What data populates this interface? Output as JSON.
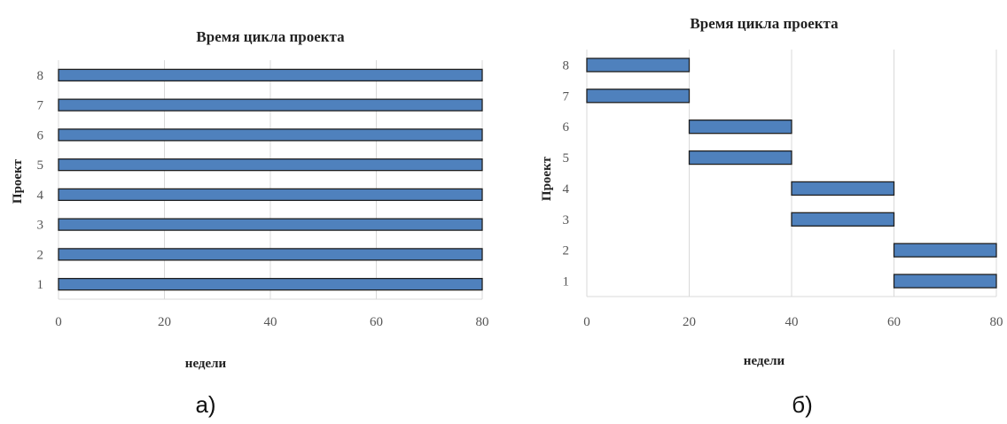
{
  "chart_data": [
    {
      "type": "bar",
      "orientation": "horizontal-range",
      "title": "Время цикла проекта",
      "xlabel": "недели",
      "ylabel": "Проект",
      "caption": "а)",
      "xlim": [
        0,
        80
      ],
      "xticks": [
        0,
        20,
        40,
        60,
        80
      ],
      "categories": [
        "1",
        "2",
        "3",
        "4",
        "5",
        "6",
        "7",
        "8"
      ],
      "starts": [
        0,
        0,
        0,
        0,
        0,
        0,
        0,
        0
      ],
      "ends": [
        80,
        80,
        80,
        80,
        80,
        80,
        80,
        80
      ],
      "grid": true,
      "bar_color": "#4f81bd"
    },
    {
      "type": "bar",
      "orientation": "horizontal-range",
      "title": "Время цикла проекта",
      "xlabel": "недели",
      "ylabel": "Проект",
      "caption": "б)",
      "xlim": [
        0,
        80
      ],
      "xticks": [
        0,
        20,
        40,
        60,
        80
      ],
      "categories": [
        "1",
        "2",
        "3",
        "4",
        "5",
        "6",
        "7",
        "8"
      ],
      "starts": [
        60,
        60,
        40,
        40,
        20,
        20,
        0,
        0
      ],
      "ends": [
        80,
        80,
        60,
        60,
        40,
        40,
        20,
        20
      ],
      "grid": true,
      "bar_color": "#4f81bd"
    }
  ]
}
